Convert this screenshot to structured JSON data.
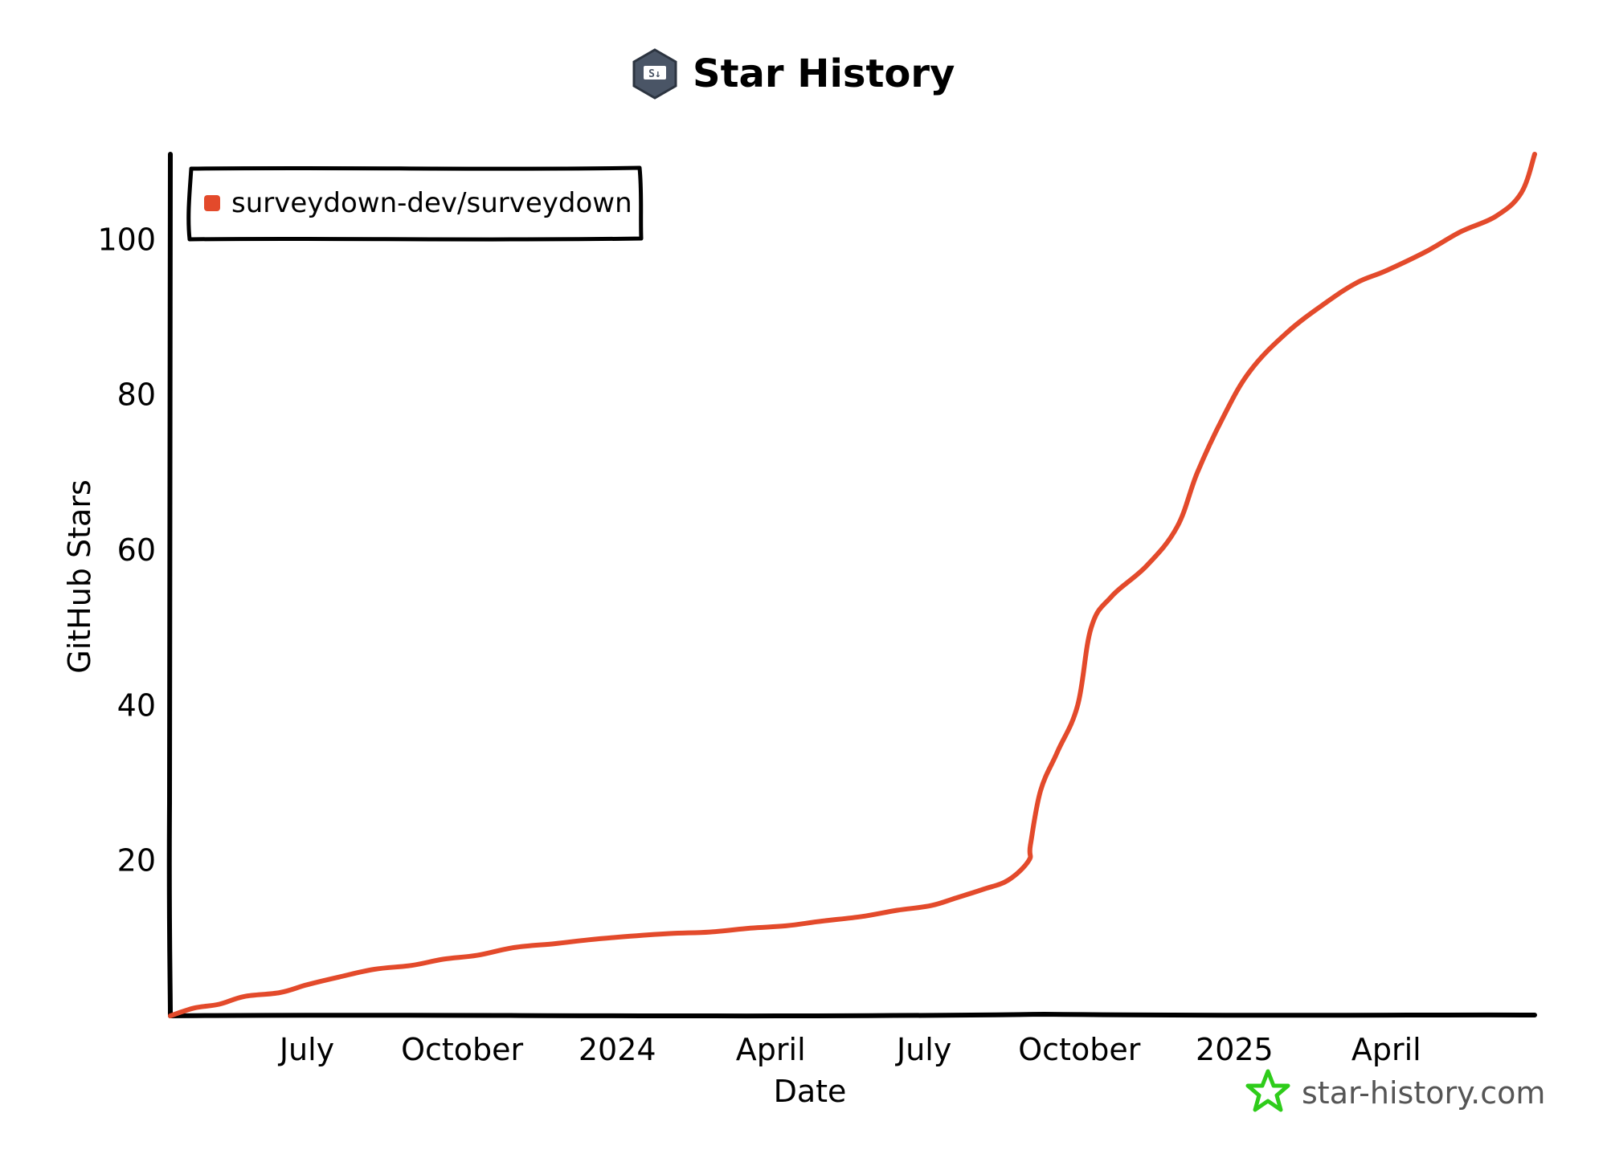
{
  "title": "Star History",
  "watermark": "star-history.com",
  "colors": {
    "series": "#e34a2b",
    "axis": "#000000",
    "logo_green": "#2ecc1a",
    "badge": "#4a5566"
  },
  "chart_data": {
    "type": "line",
    "title": "Star History",
    "xlabel": "Date",
    "ylabel": "GitHub Stars",
    "x_tick_labels": [
      "July",
      "October",
      "2024",
      "April",
      "July",
      "October",
      "2025",
      "April"
    ],
    "x_ticks": [
      "2023-07-01",
      "2023-10-01",
      "2024-01-01",
      "2024-04-01",
      "2024-07-01",
      "2024-10-01",
      "2025-01-01",
      "2025-04-01"
    ],
    "y_ticks": [
      20,
      40,
      60,
      80,
      100
    ],
    "xlim": [
      "2023-04-11",
      "2025-06-28"
    ],
    "ylim": [
      0,
      111
    ],
    "grid": false,
    "legend_position": "top-left",
    "series": [
      {
        "name": "surveydown-dev/surveydown",
        "x": [
          "2023-04-11",
          "2023-04-25",
          "2023-05-10",
          "2023-05-25",
          "2023-06-15",
          "2023-07-01",
          "2023-07-20",
          "2023-08-10",
          "2023-09-01",
          "2023-09-20",
          "2023-10-10",
          "2023-11-01",
          "2023-11-25",
          "2023-12-15",
          "2024-01-05",
          "2024-02-01",
          "2024-02-25",
          "2024-03-20",
          "2024-04-10",
          "2024-05-01",
          "2024-05-25",
          "2024-06-15",
          "2024-07-05",
          "2024-07-20",
          "2024-08-05",
          "2024-08-20",
          "2024-09-01",
          "2024-09-02",
          "2024-09-08",
          "2024-09-18",
          "2024-09-30",
          "2024-10-08",
          "2024-10-20",
          "2024-11-10",
          "2024-11-28",
          "2024-12-10",
          "2024-12-25",
          "2025-01-10",
          "2025-02-01",
          "2025-02-25",
          "2025-03-15",
          "2025-04-01",
          "2025-04-25",
          "2025-05-15",
          "2025-06-05",
          "2025-06-20",
          "2025-06-28"
        ],
        "y": [
          0,
          1,
          1.5,
          2.5,
          3,
          4,
          5,
          6,
          6.5,
          7.3,
          7.8,
          8.8,
          9.3,
          9.8,
          10.2,
          10.6,
          10.8,
          11.3,
          11.6,
          12.2,
          12.8,
          13.6,
          14.2,
          15.2,
          16.3,
          17.5,
          20,
          22,
          29,
          34,
          40,
          50,
          54,
          58,
          63,
          70,
          77,
          83,
          88,
          92,
          94.5,
          96,
          98.5,
          101,
          103,
          106,
          111
        ]
      }
    ]
  }
}
